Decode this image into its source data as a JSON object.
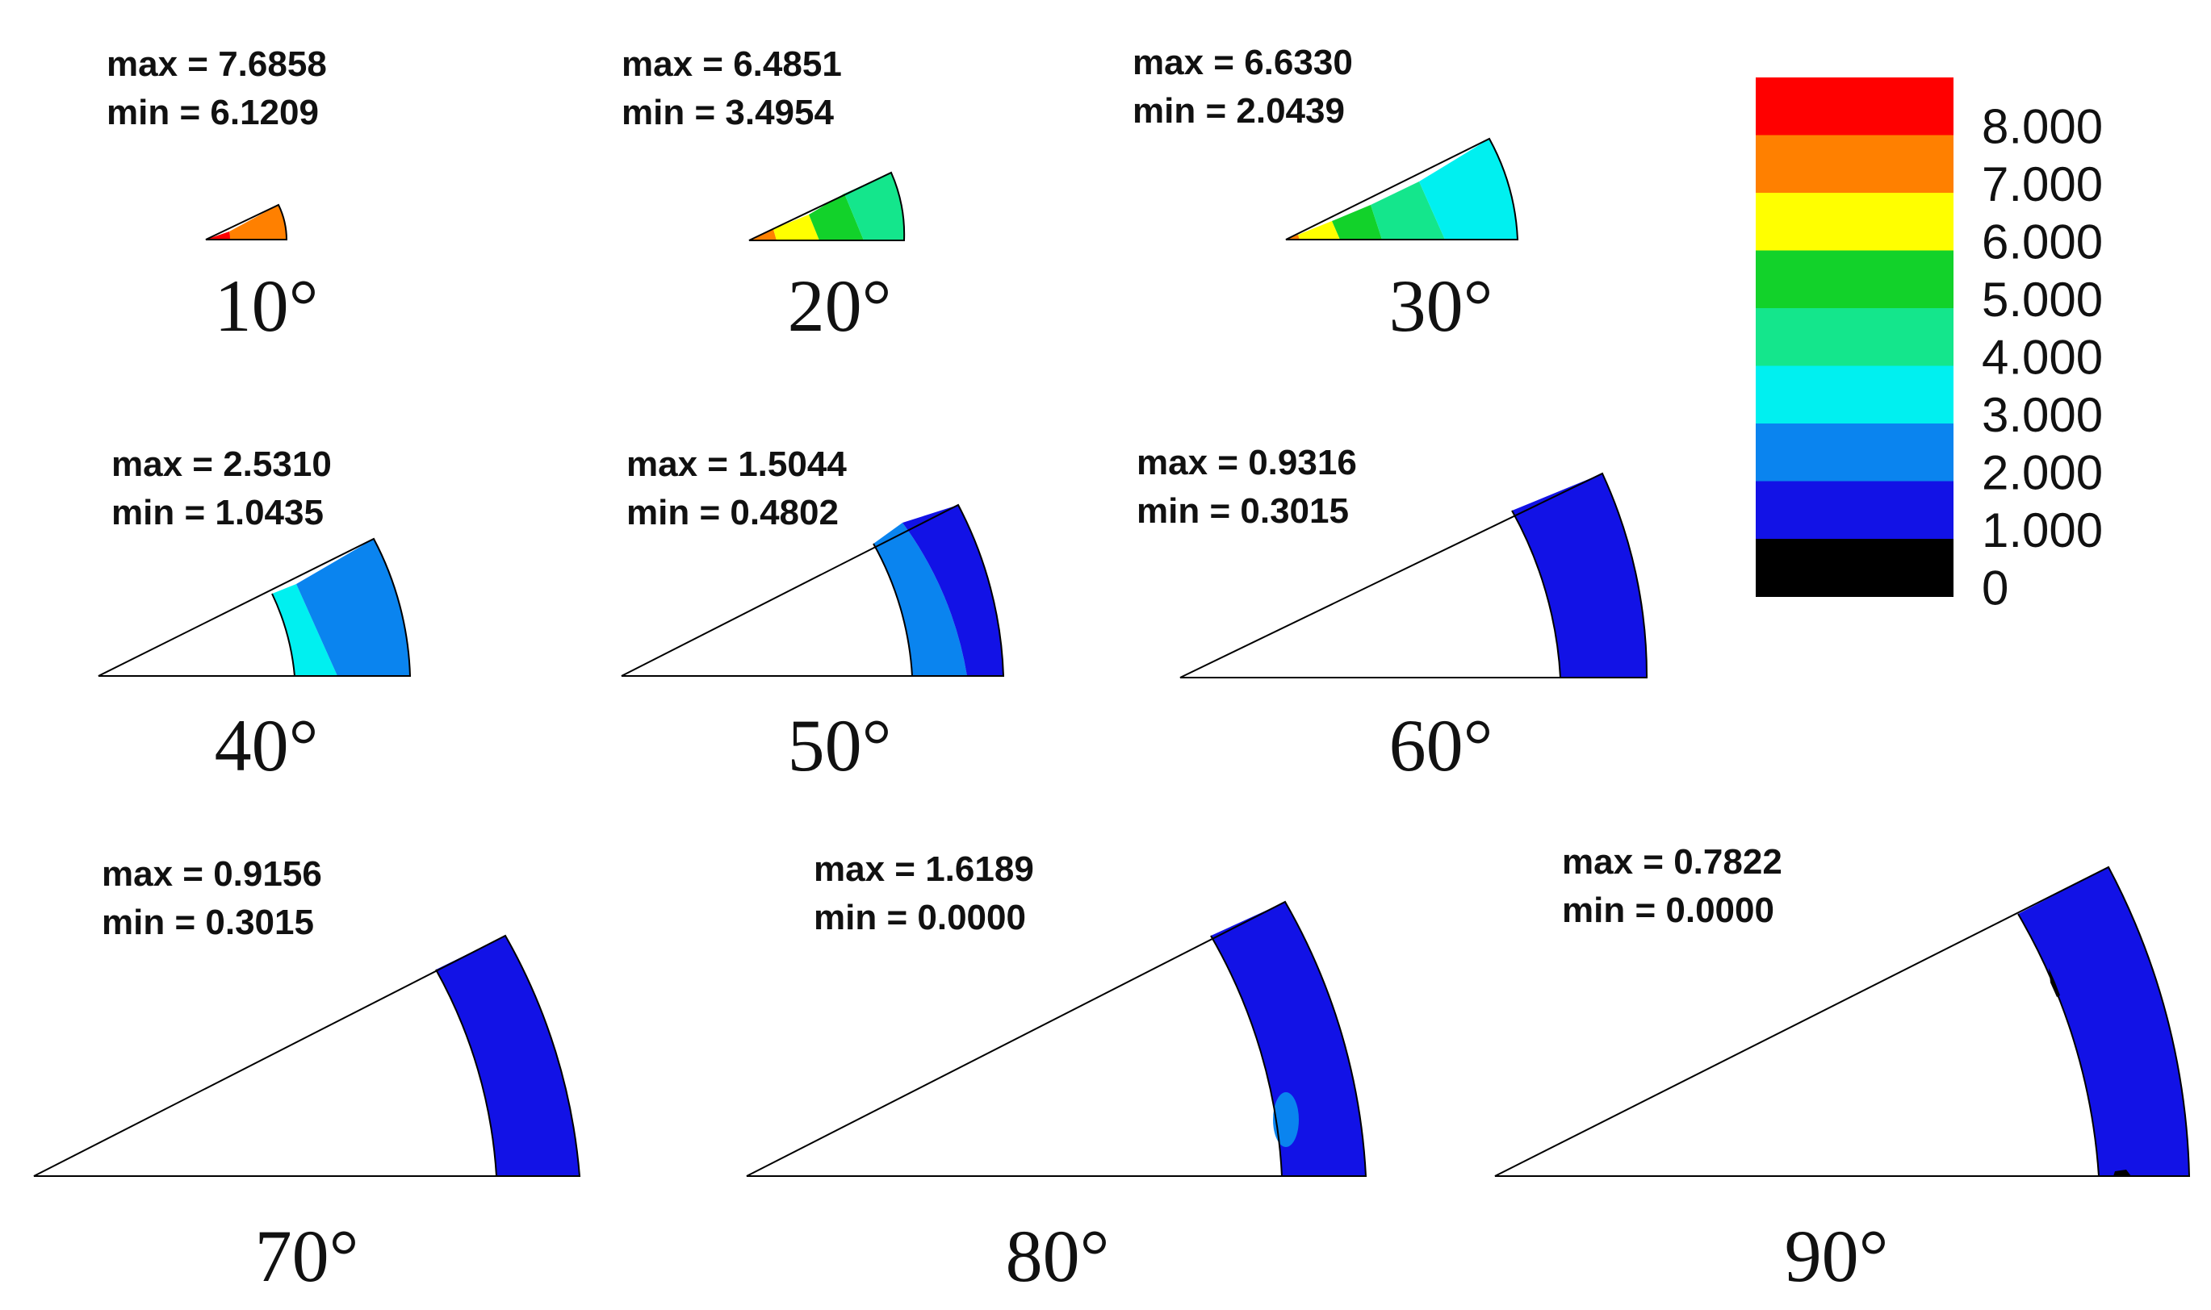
{
  "colors": {
    "level_0_black": "#000000",
    "level_1_blue": "#1212e6",
    "level_2_lightblue": "#0a84ef",
    "level_3_cyan": "#00f0f0",
    "level_4_seagreen": "#14e68c",
    "level_5_green": "#12d22a",
    "level_6_yellow": "#ffff00",
    "level_7_orange": "#ff8000",
    "level_8_red": "#ff0000"
  },
  "legend": {
    "ticks": [
      "8.000",
      "7.000",
      "6.000",
      "5.000",
      "4.000",
      "3.000",
      "2.000",
      "1.000",
      "0"
    ],
    "bands_top_to_bottom": [
      "level_8_red",
      "level_7_orange",
      "level_6_yellow",
      "level_5_green",
      "level_4_seagreen",
      "level_3_cyan",
      "level_2_lightblue",
      "level_1_blue",
      "level_0_black"
    ]
  },
  "panels": [
    {
      "label": "10°",
      "max_text": "max = 7.6858",
      "min_text": "min = 6.1209"
    },
    {
      "label": "20°",
      "max_text": "max = 6.4851",
      "min_text": "min = 3.4954"
    },
    {
      "label": "30°",
      "max_text": "max = 6.6330",
      "min_text": "min = 2.0439"
    },
    {
      "label": "40°",
      "max_text": "max = 2.5310",
      "min_text": "min = 1.0435"
    },
    {
      "label": "50°",
      "max_text": "max = 1.5044",
      "min_text": "min = 0.4802"
    },
    {
      "label": "60°",
      "max_text": "max = 0.9316",
      "min_text": "min = 0.3015"
    },
    {
      "label": "70°",
      "max_text": "max = 0.9156",
      "min_text": "min = 0.3015"
    },
    {
      "label": "80°",
      "max_text": "max = 1.6189",
      "min_text": "min = 0.0000"
    },
    {
      "label": "90°",
      "max_text": "max = 0.7822",
      "min_text": "min = 0.0000"
    }
  ]
}
